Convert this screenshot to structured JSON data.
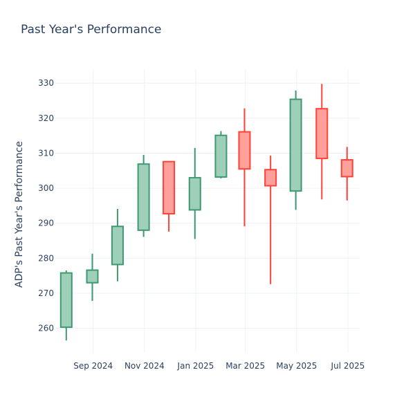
{
  "chart_data": {
    "type": "candlestick",
    "title": "Past Year's Performance",
    "xlabel": "",
    "ylabel": "ADP's Past Year's Performance",
    "ylim": [
      253,
      334
    ],
    "y_ticks": [
      260,
      270,
      280,
      290,
      300,
      310,
      320,
      330
    ],
    "x_ticks": [
      {
        "label": "Sep 2024",
        "date": "2024-09-01"
      },
      {
        "label": "Nov 2024",
        "date": "2024-11-01"
      },
      {
        "label": "Jan 2025",
        "date": "2025-01-01"
      },
      {
        "label": "Mar 2025",
        "date": "2025-03-01"
      },
      {
        "label": "May 2025",
        "date": "2025-05-01"
      },
      {
        "label": "Jul 2025",
        "date": "2025-07-01"
      }
    ],
    "xlim": [
      "2024-07-18",
      "2025-07-15"
    ],
    "grid": true,
    "colors": {
      "increasing": "#3d9970",
      "increasing_fill": "#9ecfb8",
      "decreasing": "#ff4136",
      "decreasing_fill": "#ffa09b"
    },
    "candles": [
      {
        "date": "2024-07-31",
        "open": 260.3,
        "high": 276.5,
        "low": 256.5,
        "close": 275.8
      },
      {
        "date": "2024-08-31",
        "open": 273.0,
        "high": 281.3,
        "low": 267.8,
        "close": 276.6
      },
      {
        "date": "2024-09-30",
        "open": 278.2,
        "high": 294.1,
        "low": 273.4,
        "close": 289.1
      },
      {
        "date": "2024-10-31",
        "open": 288.0,
        "high": 309.5,
        "low": 286.1,
        "close": 306.9
      },
      {
        "date": "2024-11-30",
        "open": 307.6,
        "high": 307.6,
        "low": 287.6,
        "close": 292.7
      },
      {
        "date": "2024-12-31",
        "open": 293.8,
        "high": 311.5,
        "low": 285.5,
        "close": 303.0
      },
      {
        "date": "2025-01-31",
        "open": 303.2,
        "high": 316.3,
        "low": 302.8,
        "close": 315.1
      },
      {
        "date": "2025-02-28",
        "open": 316.1,
        "high": 322.8,
        "low": 289.1,
        "close": 305.5
      },
      {
        "date": "2025-03-31",
        "open": 305.3,
        "high": 309.3,
        "low": 272.6,
        "close": 300.7
      },
      {
        "date": "2025-04-30",
        "open": 299.2,
        "high": 327.9,
        "low": 293.8,
        "close": 325.4
      },
      {
        "date": "2025-05-31",
        "open": 322.7,
        "high": 329.8,
        "low": 296.8,
        "close": 308.5
      },
      {
        "date": "2025-06-30",
        "open": 308.1,
        "high": 311.8,
        "low": 296.5,
        "close": 303.3
      }
    ]
  }
}
